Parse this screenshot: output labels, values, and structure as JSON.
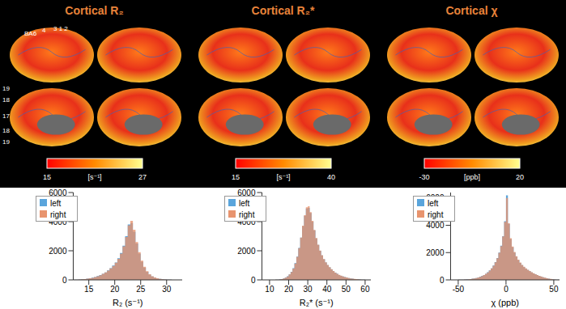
{
  "panels": [
    {
      "title": "Cortical R₂",
      "colorbar": {
        "range": [
          15,
          27
        ],
        "ticks": [
          15,
          27
        ],
        "label": "[s⁻¹]"
      }
    },
    {
      "title": "Cortical R₂*",
      "colorbar": {
        "range": [
          15,
          40
        ],
        "ticks": [
          15,
          40
        ],
        "label": "[s⁻¹]"
      }
    },
    {
      "title": "Cortical χ",
      "colorbar": {
        "range": [
          -30,
          20
        ],
        "ticks": [
          -30,
          20
        ],
        "label": "[ppb]"
      }
    }
  ],
  "annotations": {
    "lateral": [
      "BA6",
      "4",
      "3 1 2"
    ],
    "medial": [
      "19",
      "18",
      "17",
      "18",
      "19"
    ]
  },
  "chart_data": [
    {
      "type": "histogram",
      "x_label": "R₂ (s⁻¹)",
      "xlim": [
        12,
        33
      ],
      "xticks": [
        15,
        20,
        25,
        30
      ],
      "ylim": [
        0,
        6000
      ],
      "yticks": [
        0,
        2000,
        4000,
        6000
      ],
      "legend": "upper left",
      "bins": [
        11,
        11.5,
        12,
        12.5,
        13,
        13.5,
        14,
        14.5,
        15,
        15.5,
        16,
        16.5,
        17,
        17.5,
        18,
        18.5,
        19,
        19.5,
        20,
        20.5,
        21,
        21.5,
        22,
        22.5,
        23,
        23.5,
        24,
        24.5,
        25,
        25.5,
        26,
        26.5,
        27,
        27.5,
        28,
        28.5,
        29,
        29.5,
        30,
        30.5,
        31,
        31.5,
        32,
        32.5,
        33
      ],
      "series": [
        {
          "name": "left",
          "color": "#5aa5dc",
          "values": [
            0,
            5,
            10,
            20,
            30,
            45,
            60,
            80,
            110,
            150,
            200,
            260,
            330,
            420,
            520,
            650,
            800,
            980,
            1200,
            1480,
            1850,
            2350,
            3000,
            3800,
            3900,
            3300,
            2500,
            1800,
            1250,
            850,
            560,
            360,
            230,
            150,
            100,
            65,
            40,
            25,
            15,
            10,
            6,
            4,
            2,
            1
          ]
        },
        {
          "name": "right",
          "color": "#e8946e",
          "values": [
            0,
            4,
            9,
            18,
            28,
            42,
            58,
            78,
            105,
            145,
            195,
            255,
            320,
            410,
            510,
            640,
            790,
            960,
            1180,
            1450,
            1800,
            2300,
            2950,
            3750,
            4050,
            3450,
            2600,
            1900,
            1320,
            900,
            600,
            390,
            250,
            160,
            105,
            70,
            42,
            27,
            16,
            10,
            6,
            4,
            2,
            1
          ]
        }
      ]
    },
    {
      "type": "histogram",
      "x_label": "R₂* (s⁻¹)",
      "xlim": [
        6,
        63
      ],
      "xticks": [
        10,
        20,
        30,
        40,
        50,
        60
      ],
      "ylim": [
        0,
        6000
      ],
      "yticks": [
        0,
        2000,
        4000,
        6000
      ],
      "legend": "upper left",
      "bins": [
        10,
        11,
        12,
        13,
        14,
        15,
        16,
        17,
        18,
        19,
        20,
        21,
        22,
        23,
        24,
        25,
        26,
        27,
        28,
        29,
        30,
        31,
        32,
        33,
        34,
        35,
        36,
        37,
        38,
        39,
        40,
        41,
        42,
        43,
        44,
        45,
        46,
        47,
        48,
        49,
        50,
        51,
        52,
        53,
        54,
        55,
        56,
        57,
        58,
        59,
        60
      ],
      "series": [
        {
          "name": "left",
          "color": "#5aa5dc",
          "values": [
            0,
            2,
            5,
            10,
            20,
            35,
            60,
            100,
            160,
            250,
            380,
            560,
            800,
            1150,
            1600,
            2200,
            2900,
            3700,
            4400,
            4900,
            4950,
            4600,
            4000,
            3400,
            2850,
            2400,
            2000,
            1680,
            1420,
            1200,
            1020,
            860,
            720,
            600,
            500,
            410,
            340,
            280,
            230,
            190,
            155,
            125,
            100,
            80,
            62,
            48,
            36,
            26,
            18,
            12
          ]
        },
        {
          "name": "right",
          "color": "#e8946e",
          "values": [
            0,
            2,
            4,
            9,
            18,
            32,
            55,
            95,
            150,
            240,
            370,
            540,
            780,
            1120,
            1580,
            2180,
            2900,
            3720,
            4450,
            4980,
            5050,
            4650,
            4050,
            3430,
            2870,
            2410,
            2010,
            1690,
            1430,
            1210,
            1030,
            870,
            730,
            610,
            505,
            415,
            345,
            285,
            235,
            195,
            160,
            128,
            102,
            82,
            64,
            50,
            38,
            27,
            19,
            13
          ]
        }
      ]
    },
    {
      "type": "histogram",
      "x_label": "χ (ppb)",
      "xlim": [
        -58,
        56
      ],
      "xticks": [
        -50,
        0,
        50
      ],
      "ylim": [
        0,
        6400
      ],
      "yticks": [
        0,
        2000,
        4000,
        6000
      ],
      "legend": "upper left",
      "bins": [
        -56,
        -54,
        -52,
        -50,
        -48,
        -46,
        -44,
        -42,
        -40,
        -38,
        -36,
        -34,
        -32,
        -30,
        -28,
        -26,
        -24,
        -22,
        -20,
        -18,
        -16,
        -14,
        -12,
        -10,
        -8,
        -6,
        -4,
        -2,
        0,
        2,
        4,
        6,
        8,
        10,
        12,
        14,
        16,
        18,
        20,
        22,
        24,
        26,
        28,
        30,
        32,
        34,
        36,
        38,
        40,
        42,
        44,
        46,
        48,
        50,
        52,
        54,
        56
      ],
      "series": [
        {
          "name": "left",
          "color": "#5aa5dc",
          "values": [
            2,
            4,
            6,
            10,
            14,
            20,
            28,
            38,
            50,
            65,
            85,
            110,
            140,
            180,
            230,
            290,
            360,
            450,
            560,
            690,
            850,
            1050,
            1300,
            1600,
            2000,
            2500,
            3200,
            4300,
            6200,
            4100,
            3000,
            2400,
            2000,
            1700,
            1450,
            1250,
            1080,
            940,
            820,
            720,
            630,
            550,
            480,
            410,
            350,
            290,
            240,
            195,
            155,
            120,
            90,
            65,
            45,
            30,
            20,
            12
          ]
        },
        {
          "name": "right",
          "color": "#e8946e",
          "values": [
            2,
            3,
            6,
            9,
            13,
            19,
            27,
            36,
            48,
            62,
            82,
            105,
            135,
            175,
            225,
            285,
            355,
            440,
            550,
            680,
            840,
            1040,
            1290,
            1590,
            1990,
            2480,
            3180,
            4250,
            6000,
            4150,
            3050,
            2450,
            2050,
            1740,
            1480,
            1280,
            1100,
            960,
            840,
            735,
            645,
            560,
            490,
            420,
            360,
            300,
            248,
            200,
            160,
            125,
            95,
            68,
            48,
            32,
            21,
            13
          ]
        }
      ]
    }
  ]
}
